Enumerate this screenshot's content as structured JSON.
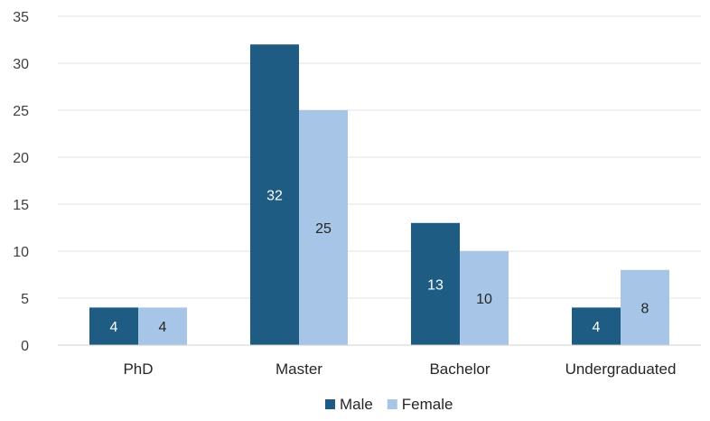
{
  "chart_data": {
    "type": "bar",
    "title": "",
    "xlabel": "",
    "ylabel": "",
    "categories": [
      "PhD",
      "Master",
      "Bachelor",
      "Undergraduated"
    ],
    "series": [
      {
        "name": "Male",
        "values": [
          4,
          32,
          13,
          4
        ],
        "color": "#1f5c84"
      },
      {
        "name": "Female",
        "values": [
          4,
          25,
          10,
          8
        ],
        "color": "#a7c6e7"
      }
    ],
    "ylim": [
      0,
      35
    ],
    "yticks": [
      0,
      5,
      10,
      15,
      20,
      25,
      30,
      35
    ],
    "grid": true,
    "legend_position": "bottom",
    "data_labels": true,
    "data_label_colors": {
      "Male": "#ffffff",
      "Female": "#262626"
    }
  }
}
